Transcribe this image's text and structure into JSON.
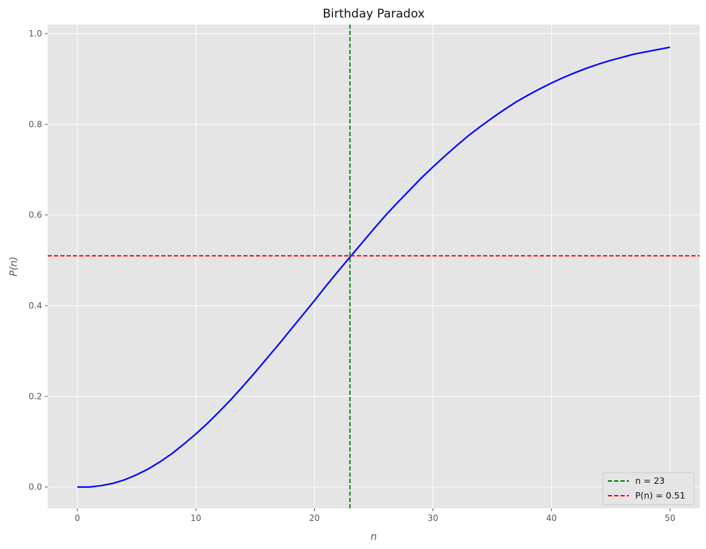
{
  "chart_data": {
    "type": "line",
    "title": "Birthday Paradox",
    "xlabel": "n",
    "ylabel": "P(n)",
    "xlim": [
      -2.5,
      52.5
    ],
    "ylim": [
      -0.047,
      1.02
    ],
    "x_ticks": [
      0,
      10,
      20,
      30,
      40,
      50
    ],
    "y_ticks": [
      0.0,
      0.2,
      0.4,
      0.6,
      0.8,
      1.0
    ],
    "x_tick_labels": [
      "0",
      "10",
      "20",
      "30",
      "40",
      "50"
    ],
    "y_tick_labels": [
      "0.0",
      "0.2",
      "0.4",
      "0.6",
      "0.8",
      "1.0"
    ],
    "grid": true,
    "legend_position": "lower-right",
    "series": [
      {
        "color": "#0000ff",
        "style": "solid",
        "x": [
          0,
          1,
          2,
          3,
          4,
          5,
          6,
          7,
          8,
          9,
          10,
          11,
          12,
          13,
          14,
          15,
          16,
          17,
          18,
          19,
          20,
          21,
          22,
          23,
          24,
          25,
          26,
          27,
          28,
          29,
          30,
          31,
          32,
          33,
          34,
          35,
          36,
          37,
          38,
          39,
          40,
          41,
          42,
          43,
          44,
          45,
          46,
          47,
          48,
          49,
          50
        ],
        "y": [
          0,
          0,
          0.003,
          0.008,
          0.016,
          0.027,
          0.04,
          0.056,
          0.074,
          0.095,
          0.117,
          0.141,
          0.167,
          0.194,
          0.223,
          0.253,
          0.284,
          0.315,
          0.347,
          0.379,
          0.411,
          0.444,
          0.476,
          0.507,
          0.538,
          0.569,
          0.599,
          0.627,
          0.654,
          0.681,
          0.706,
          0.73,
          0.753,
          0.775,
          0.795,
          0.814,
          0.832,
          0.849,
          0.864,
          0.878,
          0.891,
          0.903,
          0.914,
          0.924,
          0.933,
          0.941,
          0.948,
          0.955,
          0.96,
          0.965,
          0.97
        ]
      }
    ],
    "reference_lines": [
      {
        "orientation": "vertical",
        "value": 23,
        "color": "#008000",
        "style": "dashed",
        "legend_label": "n = 23"
      },
      {
        "orientation": "horizontal",
        "value": 0.51,
        "color": "#ff0000",
        "style": "dashed",
        "legend_label": "P(n) = 0.51"
      }
    ]
  }
}
